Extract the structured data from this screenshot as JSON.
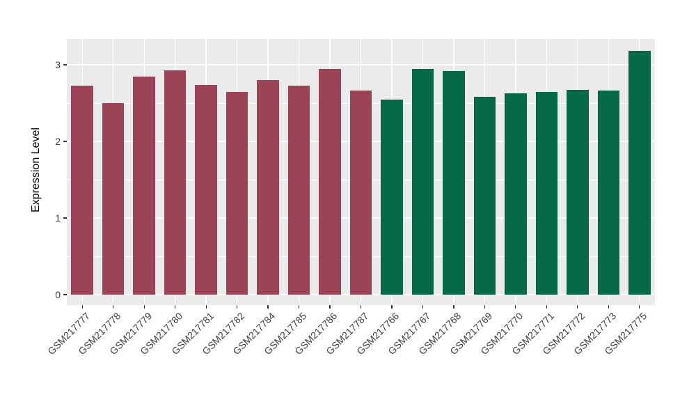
{
  "chart_data": {
    "type": "bar",
    "title": "",
    "xlabel": "",
    "ylabel": "Expression Level",
    "y_ticks": [
      0,
      1,
      2,
      3
    ],
    "ylim": [
      -0.14,
      3.34
    ],
    "grid": "major-and-minor",
    "legend_position": "none",
    "categories": [
      "GSM217777",
      "GSM217778",
      "GSM217779",
      "GSM217780",
      "GSM217781",
      "GSM217782",
      "GSM217784",
      "GSM217785",
      "GSM217786",
      "GSM217787",
      "GSM217766",
      "GSM217767",
      "GSM217768",
      "GSM217769",
      "GSM217770",
      "GSM217771",
      "GSM217772",
      "GSM217773",
      "GSM217775"
    ],
    "values": [
      2.73,
      2.5,
      2.85,
      2.93,
      2.74,
      2.65,
      2.8,
      2.73,
      2.95,
      2.66,
      2.55,
      2.95,
      2.92,
      2.58,
      2.63,
      2.65,
      2.67,
      2.66,
      3.18
    ],
    "groups": [
      "group1",
      "group1",
      "group1",
      "group1",
      "group1",
      "group1",
      "group1",
      "group1",
      "group1",
      "group1",
      "group2",
      "group2",
      "group2",
      "group2",
      "group2",
      "group2",
      "group2",
      "group2",
      "group2"
    ],
    "colors": {
      "group1": "#9C4355",
      "group2": "#036949"
    },
    "panel_background": "#EBEBEB",
    "gridline_color": "#FFFFFF",
    "tick_color": "#333333",
    "axis_text_color": "#404040"
  }
}
